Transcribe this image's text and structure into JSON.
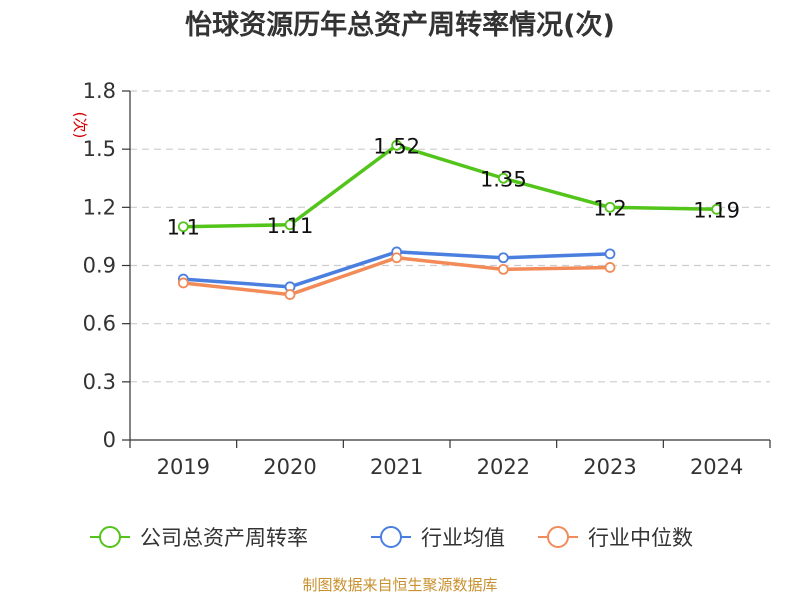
{
  "chart_data": {
    "type": "line",
    "title": "怡球资源历年总资产周转率情况(次)",
    "y_unit_label": "(次)",
    "categories": [
      "2019",
      "2020",
      "2021",
      "2022",
      "2023",
      "2024"
    ],
    "y_ticks": [
      "0",
      "0.3",
      "0.6",
      "0.9",
      "1.2",
      "1.5",
      "1.8"
    ],
    "ylim": [
      0,
      1.8
    ],
    "grid": true,
    "legend_position": "bottom",
    "series": [
      {
        "name": "公司总资产周转率",
        "color": "#52c41a",
        "values": [
          1.1,
          1.11,
          1.52,
          1.35,
          1.2,
          1.19
        ],
        "labels": [
          "1.1",
          "1.11",
          "1.52",
          "1.35",
          "1.2",
          "1.19"
        ]
      },
      {
        "name": "行业均值",
        "color": "#4a7fe0",
        "values": [
          0.83,
          0.79,
          0.97,
          0.94,
          0.96,
          null
        ]
      },
      {
        "name": "行业中位数",
        "color": "#f28b58",
        "values": [
          0.81,
          0.75,
          0.94,
          0.88,
          0.89,
          null
        ]
      }
    ],
    "source": "制图数据来自恒生聚源数据库"
  }
}
